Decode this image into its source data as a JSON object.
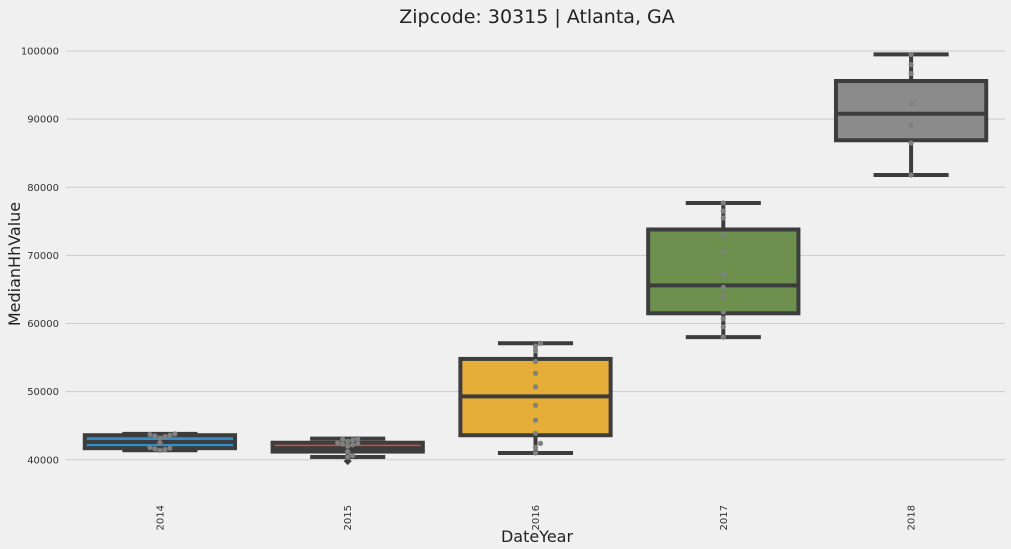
{
  "chart_data": {
    "type": "box",
    "title": "Zipcode: 30315 | Atlanta, GA",
    "xlabel": "DateYear",
    "ylabel": "MedianHhValue",
    "categories": [
      "2014",
      "2015",
      "2016",
      "2017",
      "2018"
    ],
    "ylim": [
      36000,
      102500
    ],
    "yticks": [
      40000,
      50000,
      60000,
      70000,
      80000,
      90000,
      100000
    ],
    "ytick_labels": [
      "40000",
      "50000",
      "60000",
      "70000",
      "80000",
      "90000",
      "100000"
    ],
    "grid": true,
    "boxes": [
      {
        "category": "2014",
        "color": "#2e8fc9",
        "whisker_low": 41400,
        "q1": 41700,
        "median": 42600,
        "q3": 43600,
        "whisker_high": 43800,
        "points": [
          41400,
          41500,
          41600,
          41700,
          41800,
          42500,
          43200,
          43400,
          43500,
          43600,
          43700,
          43800
        ],
        "outliers": []
      },
      {
        "category": "2015",
        "color": "#e24a33",
        "whisker_low": 40400,
        "q1": 41200,
        "median": 41700,
        "q3": 42500,
        "whisker_high": 43100,
        "points": [
          40400,
          40600,
          41200,
          42000,
          42200,
          42300,
          42400,
          42500,
          42700,
          42900,
          43000,
          43100
        ],
        "outliers": [
          39800
        ]
      },
      {
        "category": "2016",
        "color": "#e5ae38",
        "whisker_low": 41000,
        "q1": 43600,
        "median": 49300,
        "q3": 54800,
        "whisker_high": 57100,
        "points": [
          41000,
          41800,
          42400,
          43900,
          45800,
          48000,
          50700,
          52700,
          54400,
          56000,
          56700,
          57100
        ],
        "outliers": []
      },
      {
        "category": "2017",
        "color": "#6d904f",
        "whisker_low": 58000,
        "q1": 61500,
        "median": 65600,
        "q3": 73800,
        "whisker_high": 77700,
        "points": [
          58000,
          59500,
          60700,
          61700,
          64000,
          65300,
          67200,
          70600,
          73000,
          75500,
          76500,
          77700
        ],
        "outliers": []
      },
      {
        "category": "2018",
        "color": "#8b8b8b",
        "whisker_low": 81800,
        "q1": 86900,
        "median": 90800,
        "q3": 95600,
        "whisker_high": 99500,
        "points": [
          81800,
          86500,
          89100,
          92300,
          96700,
          98000,
          99500
        ],
        "outliers": []
      }
    ]
  }
}
